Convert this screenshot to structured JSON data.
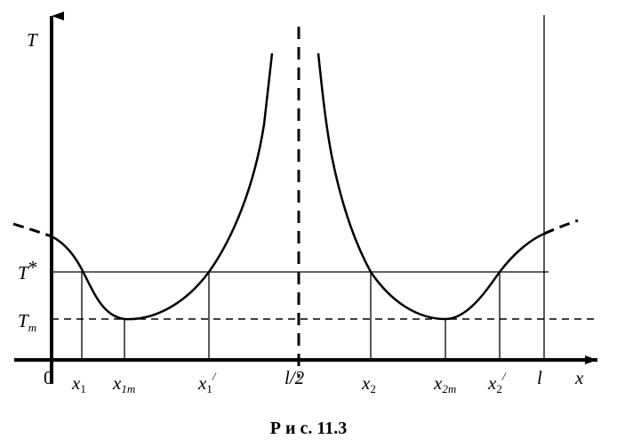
{
  "figure": {
    "y_axis_label": "T",
    "x_axis_label": "x",
    "level_labels": {
      "t_star": {
        "main": "T",
        "sup": "*"
      },
      "t_m": {
        "main": "T",
        "sub": "m"
      }
    },
    "x_ticks": {
      "origin": "0",
      "x1": {
        "main": "x",
        "sub": "1"
      },
      "x1m": {
        "main": "x",
        "sub": "1m"
      },
      "x1p": {
        "main": "x",
        "sub": "1",
        "sup": "/"
      },
      "half": "l/2",
      "x2": {
        "main": "x",
        "sub": "2"
      },
      "x2m": {
        "main": "x",
        "sub": "2m"
      },
      "x2p": {
        "main": "x",
        "sub": "2",
        "sup": "/"
      },
      "l": "l"
    },
    "caption": "Р и с. 11.3"
  }
}
